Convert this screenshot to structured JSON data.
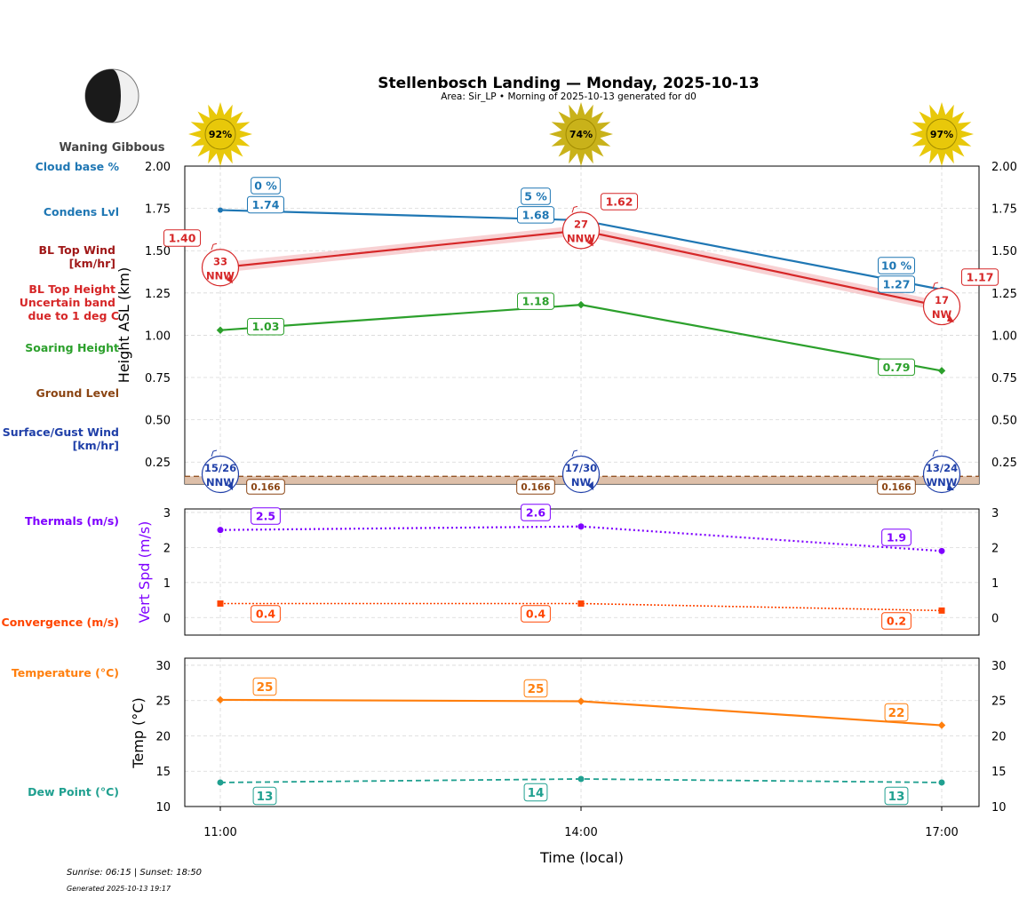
{
  "header": {
    "title": "Stellenbosch Landing — Monday, 2025-10-13",
    "subtitle": "Area: Sir_LP • Morning of 2025-10-13 generated for d0",
    "moon_phase": "Waning Gibbous",
    "sunrise_sunset": "Sunrise: 06:15 | Sunset: 18:50",
    "generated": "Generated 2025-10-13 19:17"
  },
  "colors": {
    "cloud": "#1f77b4",
    "bltop": "#d62728",
    "soaring": "#2ca02c",
    "ground": "#8b4513",
    "surface_wind": "#1f3fa8",
    "thermal": "#7f00ff",
    "convergence": "#ff4500",
    "temperature": "#ff7f0e",
    "dewpoint": "#20a090",
    "sun": "#e8c80a"
  },
  "chart_data": [
    {
      "type": "line",
      "panel": "height",
      "x": [
        "11:00",
        "14:00",
        "17:00"
      ],
      "ylabel": "Height ASL (km)",
      "ylim": [
        0.12,
        2.0
      ],
      "yticks": [
        "0.25",
        "0.50",
        "0.75",
        "1.00",
        "1.25",
        "1.50",
        "1.75",
        "2.00"
      ],
      "grid": true,
      "sun_percent": [
        "92%",
        "74%",
        "97%"
      ],
      "series": [
        {
          "name": "Condens Lvl",
          "key": "condens",
          "values": [
            1.74,
            1.68,
            1.27
          ],
          "labels": [
            "1.74",
            "1.68",
            "1.27"
          ]
        },
        {
          "name": "Cloud base %",
          "key": "cloud_pct",
          "labels": [
            "0 %",
            "5 %",
            "10 %"
          ]
        },
        {
          "name": "BL Top Height",
          "key": "bltop",
          "values": [
            1.4,
            1.62,
            1.17
          ],
          "labels": [
            "1.40",
            "1.62",
            "1.17"
          ],
          "band": 0.03
        },
        {
          "name": "Soaring Height",
          "key": "soaring",
          "values": [
            1.03,
            1.18,
            0.79
          ],
          "labels": [
            "1.03",
            "1.18",
            "0.79"
          ]
        },
        {
          "name": "Ground Level",
          "key": "ground",
          "values": [
            0.166,
            0.166,
            0.166
          ],
          "labels": [
            "0.166",
            "0.166",
            "0.166"
          ]
        }
      ],
      "bl_top_wind": [
        {
          "speed": "33",
          "dir": "NNW"
        },
        {
          "speed": "27",
          "dir": "NNW"
        },
        {
          "speed": "17",
          "dir": "NW"
        }
      ],
      "surface_wind": [
        {
          "speed": "15/26",
          "dir": "NNW"
        },
        {
          "speed": "17/30",
          "dir": "NW"
        },
        {
          "speed": "13/24",
          "dir": "WNW"
        }
      ],
      "row_labels": {
        "cloud": "Cloud base %",
        "condens": "Condens Lvl",
        "blwind_1": "BL Top Wind",
        "blwind_2": "[km/hr]",
        "bltop_1": "BL Top Height",
        "bltop_2": "Uncertain band",
        "bltop_3": "due to 1 deg C",
        "soaring": "Soaring Height",
        "ground": "Ground Level",
        "surface_1": "Surface/Gust Wind",
        "surface_2": "[km/hr]"
      }
    },
    {
      "type": "line",
      "panel": "vertical",
      "x": [
        "11:00",
        "14:00",
        "17:00"
      ],
      "ylabel": "Vert Spd (m/s)",
      "ylim": [
        -0.5,
        3.1
      ],
      "yticks": [
        "0",
        "1",
        "2",
        "3"
      ],
      "grid": true,
      "series": [
        {
          "name": "Thermals (m/s)",
          "key": "thermal",
          "values": [
            2.5,
            2.6,
            1.9
          ],
          "labels": [
            "2.5",
            "2.6",
            "1.9"
          ]
        },
        {
          "name": "Convergence (m/s)",
          "key": "convergence",
          "values": [
            0.4,
            0.4,
            0.2
          ],
          "labels": [
            "0.4",
            "0.4",
            "0.2"
          ]
        }
      ]
    },
    {
      "type": "line",
      "panel": "temperature",
      "x": [
        "11:00",
        "14:00",
        "17:00"
      ],
      "xlabel": "Time (local)",
      "ylabel": "Temp (°C)",
      "ylim": [
        10,
        31
      ],
      "yticks": [
        "10",
        "15",
        "20",
        "25",
        "30"
      ],
      "grid": true,
      "series": [
        {
          "name": "Temperature (°C)",
          "key": "temperature",
          "values": [
            25.1,
            24.9,
            21.5
          ],
          "labels": [
            "25",
            "25",
            "22"
          ]
        },
        {
          "name": "Dew Point (°C)",
          "key": "dewpoint",
          "values": [
            13.4,
            13.9,
            13.4
          ],
          "labels": [
            "13",
            "14",
            "13"
          ]
        }
      ]
    }
  ]
}
